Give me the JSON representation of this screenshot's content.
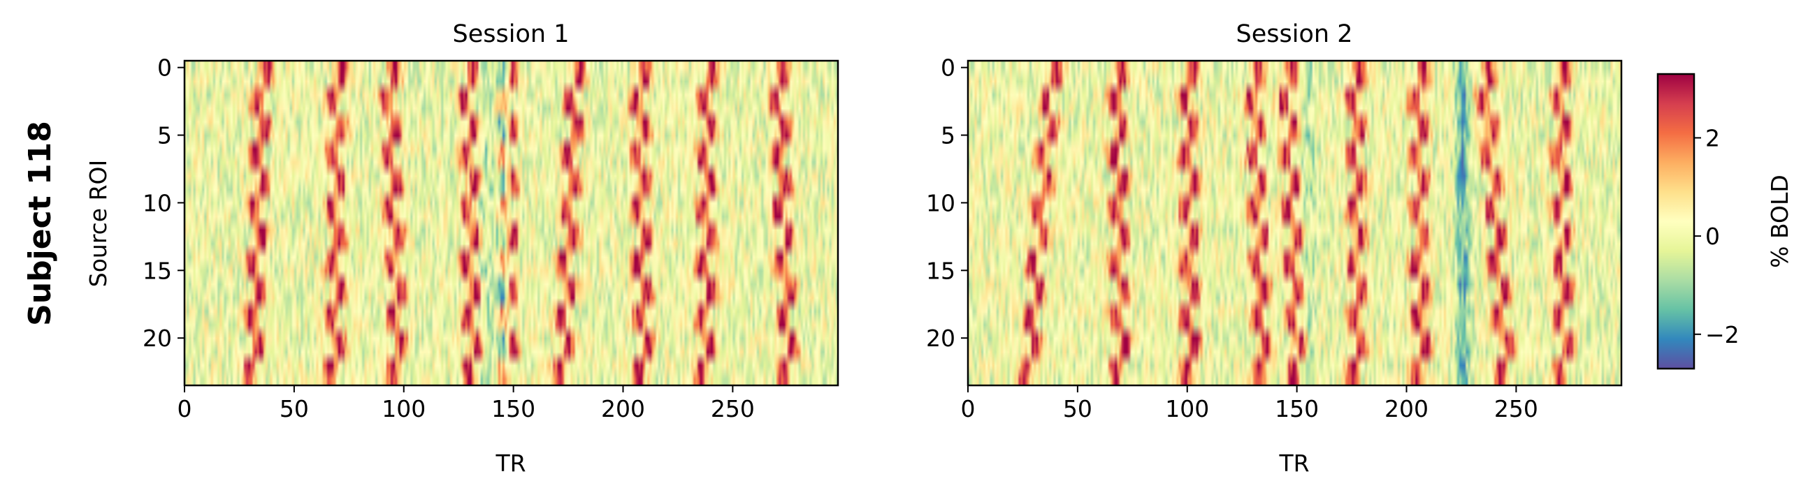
{
  "figure": {
    "row_label": "Subject 118"
  },
  "chart_data": [
    {
      "type": "heatmap",
      "title": "Session 1",
      "xlabel": "TR",
      "ylabel": "Source ROI",
      "n_rois": 24,
      "n_trs": 298,
      "xlim": [
        0,
        298
      ],
      "ylim": [
        23.5,
        -0.5
      ],
      "xticks": [
        0,
        50,
        100,
        150,
        200,
        250
      ],
      "yticks": [
        0,
        5,
        10,
        15,
        20
      ],
      "response_peaks_roi0": [
        35,
        69,
        93,
        129,
        147,
        178,
        207,
        238,
        270
      ],
      "response_peaks_roi23": [
        31,
        68,
        97,
        131,
        147,
        172,
        209,
        237,
        275
      ],
      "negative_bands": [
        145,
        137
      ],
      "value_range": [
        -2.7,
        3.3
      ]
    },
    {
      "type": "heatmap",
      "title": "Session 2",
      "xlabel": "TR",
      "ylabel": "",
      "n_rois": 24,
      "n_trs": 298,
      "xlim": [
        0,
        298
      ],
      "ylim": [
        23.5,
        -0.5
      ],
      "xticks": [
        0,
        50,
        100,
        150,
        200,
        250
      ],
      "yticks": [
        0,
        5,
        10,
        15,
        20
      ],
      "response_peaks_roi0": [
        38,
        68,
        100,
        130,
        145,
        176,
        205,
        235,
        270
      ],
      "response_peaks_roi23": [
        27,
        69,
        101,
        134,
        150,
        177,
        206,
        245,
        271
      ],
      "negative_bands": [
        225,
        155
      ],
      "value_range": [
        -2.7,
        3.3
      ]
    }
  ],
  "colorbar": {
    "label": "% BOLD",
    "colormap": "Spectral_r",
    "vmin": -2.7,
    "vmax": 3.3,
    "ticks": [
      -2,
      0,
      2
    ],
    "tick_labels": [
      "−2",
      "0",
      "2"
    ],
    "colors": [
      "#5e4fa2",
      "#3288bd",
      "#66c2a5",
      "#abdda4",
      "#e6f598",
      "#ffffbf",
      "#fee08b",
      "#fdae61",
      "#f46d43",
      "#d53e4f",
      "#9e0142"
    ]
  }
}
